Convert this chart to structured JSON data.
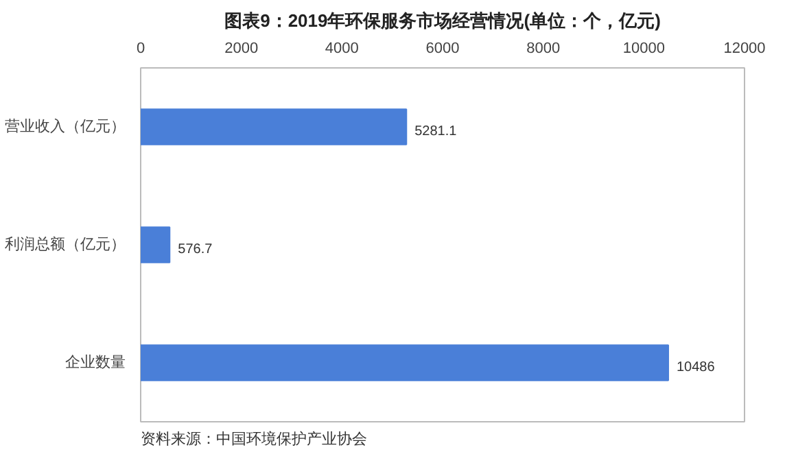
{
  "chart_data": {
    "type": "bar",
    "orientation": "horizontal",
    "title": "图表9：2019年环保服务市场经营情况(单位：个，亿元)",
    "categories": [
      "营业收入（亿元）",
      "利润总额（亿元）",
      "企业数量"
    ],
    "values": [
      5281.1,
      576.7,
      10486
    ],
    "color": "#4a7fd8",
    "xlim": [
      0,
      12000
    ],
    "xticks": [
      0,
      2000,
      4000,
      6000,
      8000,
      10000,
      12000
    ],
    "data_labels": true,
    "grid": false,
    "annotations": [
      "资料来源：中国环境保护产业协会"
    ]
  }
}
